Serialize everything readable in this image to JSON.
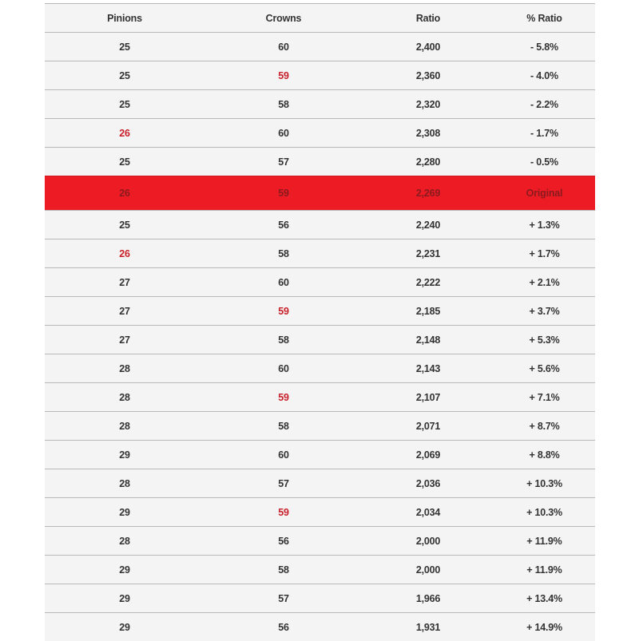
{
  "colors": {
    "accent": "#ed1c24",
    "highlight_text": "#c8202a",
    "background": "#f4f4f4"
  },
  "headers": [
    "Pinions",
    "Crowns",
    "Ratio",
    "% Ratio"
  ],
  "rows": [
    {
      "pinions": "25",
      "crowns": "60",
      "ratio": "2,400",
      "pct": "- 5.8%"
    },
    {
      "pinions": "25",
      "crowns": "59",
      "ratio": "2,360",
      "pct": "- 4.0%",
      "crowns_red": true
    },
    {
      "pinions": "25",
      "crowns": "58",
      "ratio": "2,320",
      "pct": "- 2.2%"
    },
    {
      "pinions": "26",
      "crowns": "60",
      "ratio": "2,308",
      "pct": "- 1.7%",
      "pinions_red": true
    },
    {
      "pinions": "25",
      "crowns": "57",
      "ratio": "2,280",
      "pct": "- 0.5%"
    },
    {
      "pinions": "26",
      "crowns": "59",
      "ratio": "2,269",
      "pct": "Original",
      "highlighted": true
    },
    {
      "pinions": "25",
      "crowns": "56",
      "ratio": "2,240",
      "pct": "+ 1.3%"
    },
    {
      "pinions": "26",
      "crowns": "58",
      "ratio": "2,231",
      "pct": "+ 1.7%",
      "pinions_red": true
    },
    {
      "pinions": "27",
      "crowns": "60",
      "ratio": "2,222",
      "pct": "+ 2.1%"
    },
    {
      "pinions": "27",
      "crowns": "59",
      "ratio": "2,185",
      "pct": "+ 3.7%",
      "crowns_red": true
    },
    {
      "pinions": "27",
      "crowns": "58",
      "ratio": "2,148",
      "pct": "+ 5.3%"
    },
    {
      "pinions": "28",
      "crowns": "60",
      "ratio": "2,143",
      "pct": "+ 5.6%"
    },
    {
      "pinions": "28",
      "crowns": "59",
      "ratio": "2,107",
      "pct": "+ 7.1%",
      "crowns_red": true
    },
    {
      "pinions": "28",
      "crowns": "58",
      "ratio": "2,071",
      "pct": "+ 8.7%"
    },
    {
      "pinions": "29",
      "crowns": "60",
      "ratio": "2,069",
      "pct": "+ 8.8%"
    },
    {
      "pinions": "28",
      "crowns": "57",
      "ratio": "2,036",
      "pct": "+ 10.3%"
    },
    {
      "pinions": "29",
      "crowns": "59",
      "ratio": "2,034",
      "pct": "+ 10.3%",
      "crowns_red": true
    },
    {
      "pinions": "28",
      "crowns": "56",
      "ratio": "2,000",
      "pct": "+ 11.9%"
    },
    {
      "pinions": "29",
      "crowns": "58",
      "ratio": "2,000",
      "pct": "+ 11.9%"
    },
    {
      "pinions": "29",
      "crowns": "57",
      "ratio": "1,966",
      "pct": "+ 13.4%"
    },
    {
      "pinions": "29",
      "crowns": "56",
      "ratio": "1,931",
      "pct": "+ 14.9%"
    }
  ]
}
